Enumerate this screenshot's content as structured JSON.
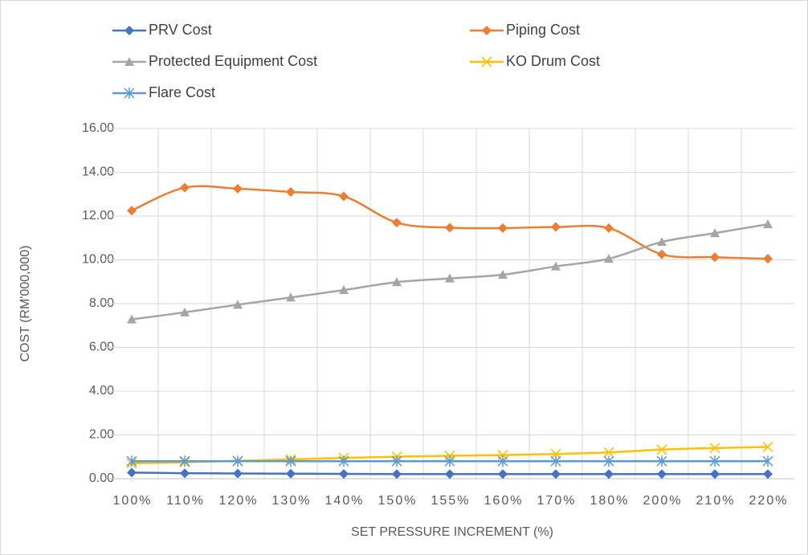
{
  "chart_data": {
    "type": "line",
    "xlabel": "SET PRESSURE INCREMENT (%)",
    "ylabel": "COST (RM'000,000)",
    "categories": [
      "100%",
      "110%",
      "120%",
      "130%",
      "140%",
      "150%",
      "155%",
      "160%",
      "170%",
      "180%",
      "200%",
      "210%",
      "220%"
    ],
    "series": [
      {
        "name": "PRV Cost",
        "color": "#4472c4",
        "marker": "diamond",
        "values": [
          0.28,
          0.25,
          0.24,
          0.23,
          0.22,
          0.21,
          0.21,
          0.21,
          0.21,
          0.21,
          0.21,
          0.21,
          0.21
        ]
      },
      {
        "name": "Piping Cost",
        "color": "#ed7d31",
        "marker": "diamond",
        "values": [
          12.25,
          13.3,
          13.25,
          13.1,
          12.9,
          11.7,
          11.47,
          11.45,
          11.5,
          11.45,
          10.25,
          10.12,
          10.05
        ]
      },
      {
        "name": "Protected Equipment Cost",
        "color": "#a5a5a5",
        "marker": "triangle",
        "values": [
          7.28,
          7.6,
          7.95,
          8.28,
          8.62,
          8.98,
          9.15,
          9.32,
          9.7,
          10.05,
          10.82,
          11.22,
          11.63
        ]
      },
      {
        "name": "KO Drum Cost",
        "color": "#ffc000",
        "marker": "x",
        "values": [
          0.7,
          0.75,
          0.82,
          0.88,
          0.95,
          1.0,
          1.05,
          1.08,
          1.13,
          1.2,
          1.33,
          1.4,
          1.45
        ]
      },
      {
        "name": "Flare Cost",
        "color": "#5b9bd5",
        "marker": "asterisk",
        "values": [
          0.8,
          0.8,
          0.8,
          0.8,
          0.8,
          0.8,
          0.8,
          0.8,
          0.8,
          0.8,
          0.8,
          0.8,
          0.8
        ]
      }
    ],
    "ylim": [
      0,
      16
    ],
    "yticks": [
      {
        "value": 0,
        "label": "0.00"
      },
      {
        "value": 2,
        "label": "2.00"
      },
      {
        "value": 4,
        "label": "4.00"
      },
      {
        "value": 6,
        "label": "6.00"
      },
      {
        "value": 8,
        "label": "8.00"
      },
      {
        "value": 10,
        "label": "10.00"
      },
      {
        "value": 12,
        "label": "12.00"
      },
      {
        "value": 14,
        "label": "14.00"
      },
      {
        "value": 16,
        "label": "16.00"
      }
    ],
    "grid": true,
    "smooth": true,
    "legend": "top"
  }
}
